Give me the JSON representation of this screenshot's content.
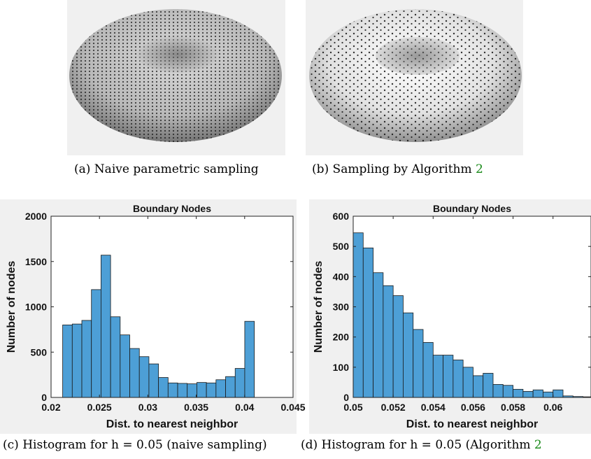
{
  "captions": {
    "a": "(a) Naive parametric sampling",
    "b_prefix": "(b) Sampling by Algorithm ",
    "b_ref": "2",
    "c": "(c) Histogram for h = 0.05 (naive sampling)",
    "d_prefix": "(d) Histogram for h = 0.05 (Algorithm ",
    "d_ref": "2"
  },
  "colors": {
    "bar": "#4d9fd6",
    "panel_bg": "#f0f0f0",
    "ref_green": "#1a8a1a"
  },
  "chart_data": [
    {
      "type": "bar",
      "title": "Boundary Nodes",
      "xlabel": "Dist. to nearest neighbor",
      "ylabel": "Number of nodes",
      "xlim": [
        0.02,
        0.045
      ],
      "ylim": [
        0,
        2000
      ],
      "xticks": [
        "0.02",
        "0.025",
        "0.03",
        "0.035",
        "0.04",
        "0.045"
      ],
      "xtick_values": [
        0.02,
        0.025,
        0.03,
        0.035,
        0.04,
        0.045
      ],
      "yticks": [
        "0",
        "500",
        "1000",
        "1500",
        "2000"
      ],
      "ytick_values": [
        0,
        500,
        1000,
        1500,
        2000
      ],
      "bin_edges_start": 0.0212,
      "bin_width": 0.00099,
      "values": [
        800,
        810,
        850,
        1190,
        1570,
        890,
        690,
        540,
        450,
        370,
        220,
        160,
        155,
        150,
        165,
        160,
        195,
        230,
        320,
        840
      ],
      "grid": false
    },
    {
      "type": "bar",
      "title": "Boundary Nodes",
      "xlabel": "Dist. to nearest neighbor",
      "ylabel": "Number of nodes",
      "xlim": [
        0.05,
        0.0619
      ],
      "ylim": [
        0,
        600
      ],
      "xticks": [
        "0.05",
        "0.052",
        "0.054",
        "0.056",
        "0.058",
        "0.06"
      ],
      "xtick_values": [
        0.05,
        0.052,
        0.054,
        0.056,
        0.058,
        0.06
      ],
      "yticks": [
        "0",
        "100",
        "200",
        "300",
        "400",
        "500",
        "600"
      ],
      "ytick_values": [
        0,
        100,
        200,
        300,
        400,
        500,
        600
      ],
      "bin_edges_start": 0.05,
      "bin_width": 0.0005,
      "values": [
        545,
        495,
        413,
        370,
        337,
        280,
        225,
        182,
        140,
        140,
        124,
        100,
        72,
        80,
        43,
        40,
        27,
        20,
        25,
        18,
        25,
        5,
        3,
        2
      ],
      "grid": false
    }
  ]
}
